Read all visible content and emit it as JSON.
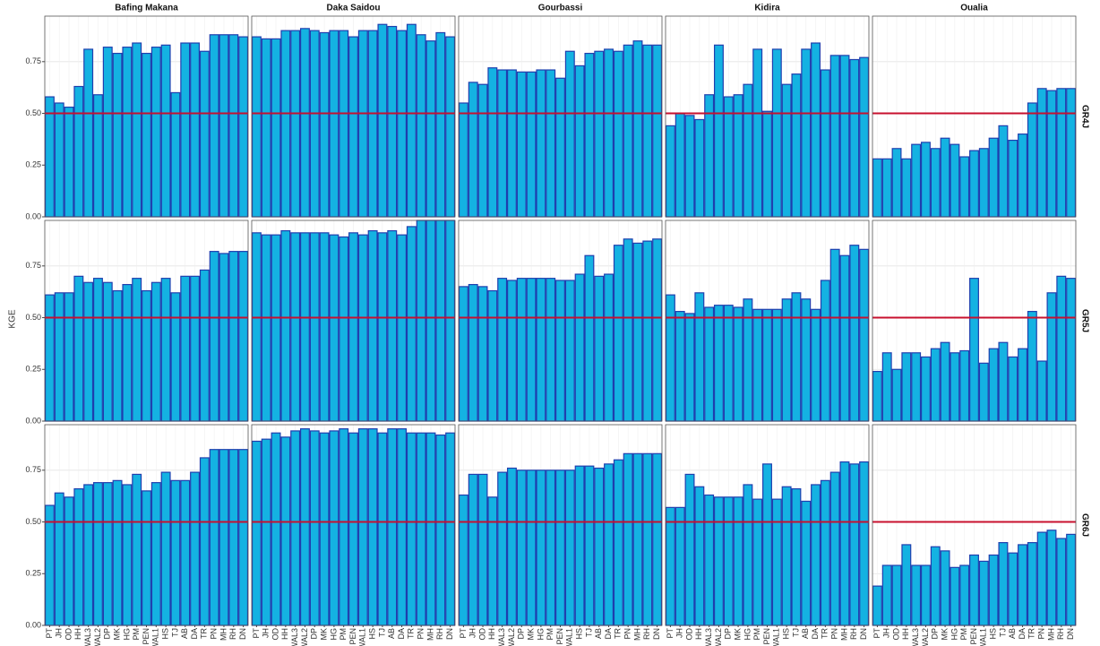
{
  "chart_data": {
    "type": "bar",
    "ylabel": "KGE",
    "categories": [
      "PT",
      "JH",
      "OD",
      "HH",
      "WAL3",
      "WAL2",
      "DP",
      "MK",
      "HG",
      "PM",
      "PEN",
      "WAL1",
      "HS",
      "TJ",
      "AB",
      "DA",
      "TR",
      "PN",
      "MH",
      "RH",
      "DN"
    ],
    "columns": [
      "Bafing Makana",
      "Daka Saidou",
      "Gourbassi",
      "Kidira",
      "Oualia"
    ],
    "ylim": [
      0,
      0.97
    ],
    "yticks": [
      {
        "value": 0,
        "label": "0.00"
      },
      {
        "value": 0.25,
        "label": "0.25"
      },
      {
        "value": 0.5,
        "label": "0.50"
      },
      {
        "value": 0.75,
        "label": "0.75"
      }
    ],
    "grid": true,
    "color": "#14b2e2",
    "edge_color": "#1f3fae",
    "reference_line": 0.5,
    "reference_color": "#c8102e",
    "rows": [
      {
        "name": "GR4J",
        "values": [
          [
            0.58,
            0.55,
            0.53,
            0.63,
            0.81,
            0.59,
            0.82,
            0.79,
            0.82,
            0.84,
            0.79,
            0.82,
            0.83,
            0.6,
            0.84,
            0.84,
            0.8,
            0.88,
            0.88,
            0.88,
            0.87
          ],
          [
            0.87,
            0.86,
            0.86,
            0.9,
            0.9,
            0.91,
            0.9,
            0.89,
            0.9,
            0.9,
            0.87,
            0.9,
            0.9,
            0.93,
            0.92,
            0.9,
            0.93,
            0.88,
            0.85,
            0.89,
            0.87
          ],
          [
            0.55,
            0.65,
            0.64,
            0.72,
            0.71,
            0.71,
            0.7,
            0.7,
            0.71,
            0.71,
            0.67,
            0.8,
            0.73,
            0.79,
            0.8,
            0.81,
            0.8,
            0.83,
            0.85,
            0.83,
            0.83
          ],
          [
            0.44,
            0.5,
            0.49,
            0.47,
            0.59,
            0.83,
            0.58,
            0.59,
            0.64,
            0.81,
            0.51,
            0.81,
            0.64,
            0.69,
            0.81,
            0.84,
            0.71,
            0.78,
            0.78,
            0.76,
            0.77
          ],
          [
            0.28,
            0.28,
            0.33,
            0.28,
            0.35,
            0.36,
            0.33,
            0.38,
            0.35,
            0.29,
            0.32,
            0.33,
            0.38,
            0.44,
            0.37,
            0.4,
            0.55,
            0.62,
            0.61,
            0.62,
            0.62
          ]
        ]
      },
      {
        "name": "GR5J",
        "values": [
          [
            0.61,
            0.62,
            0.62,
            0.7,
            0.67,
            0.69,
            0.67,
            0.63,
            0.66,
            0.69,
            0.63,
            0.67,
            0.69,
            0.62,
            0.7,
            0.7,
            0.73,
            0.82,
            0.81,
            0.82,
            0.82
          ],
          [
            0.91,
            0.9,
            0.9,
            0.92,
            0.91,
            0.91,
            0.91,
            0.91,
            0.9,
            0.89,
            0.91,
            0.9,
            0.92,
            0.91,
            0.92,
            0.9,
            0.94,
            0.97,
            0.97,
            0.97,
            0.97
          ],
          [
            0.65,
            0.66,
            0.65,
            0.63,
            0.69,
            0.68,
            0.69,
            0.69,
            0.69,
            0.69,
            0.68,
            0.68,
            0.71,
            0.8,
            0.7,
            0.71,
            0.85,
            0.88,
            0.86,
            0.87,
            0.88
          ],
          [
            0.61,
            0.53,
            0.52,
            0.62,
            0.55,
            0.56,
            0.56,
            0.55,
            0.59,
            0.54,
            0.54,
            0.54,
            0.59,
            0.62,
            0.59,
            0.54,
            0.68,
            0.83,
            0.8,
            0.85,
            0.83
          ],
          [
            0.24,
            0.33,
            0.25,
            0.33,
            0.33,
            0.31,
            0.35,
            0.38,
            0.33,
            0.34,
            0.69,
            0.28,
            0.35,
            0.38,
            0.31,
            0.35,
            0.53,
            0.29,
            0.62,
            0.7,
            0.69
          ]
        ]
      },
      {
        "name": "GR6J",
        "values": [
          [
            0.58,
            0.64,
            0.62,
            0.66,
            0.68,
            0.69,
            0.69,
            0.7,
            0.68,
            0.73,
            0.65,
            0.69,
            0.74,
            0.7,
            0.7,
            0.74,
            0.81,
            0.85,
            0.85,
            0.85,
            0.85
          ],
          [
            0.89,
            0.9,
            0.93,
            0.91,
            0.94,
            0.95,
            0.94,
            0.93,
            0.94,
            0.95,
            0.93,
            0.95,
            0.95,
            0.93,
            0.95,
            0.95,
            0.93,
            0.93,
            0.93,
            0.92,
            0.93
          ],
          [
            0.63,
            0.73,
            0.73,
            0.62,
            0.74,
            0.76,
            0.75,
            0.75,
            0.75,
            0.75,
            0.75,
            0.75,
            0.77,
            0.77,
            0.76,
            0.78,
            0.8,
            0.83,
            0.83,
            0.83,
            0.83
          ],
          [
            0.57,
            0.57,
            0.73,
            0.67,
            0.63,
            0.62,
            0.62,
            0.62,
            0.68,
            0.61,
            0.78,
            0.61,
            0.67,
            0.66,
            0.6,
            0.68,
            0.7,
            0.74,
            0.79,
            0.78,
            0.79
          ],
          [
            0.19,
            0.29,
            0.29,
            0.39,
            0.29,
            0.29,
            0.38,
            0.36,
            0.28,
            0.29,
            0.34,
            0.31,
            0.34,
            0.4,
            0.35,
            0.39,
            0.4,
            0.45,
            0.46,
            0.42,
            0.44
          ]
        ]
      }
    ]
  }
}
